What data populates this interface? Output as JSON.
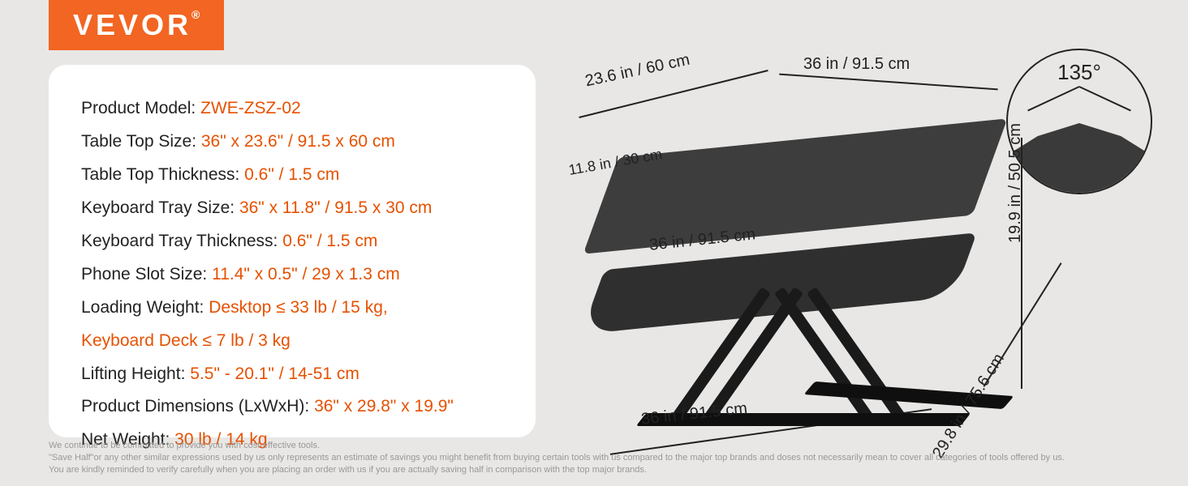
{
  "brand": "VEVOR",
  "colors": {
    "accent": "#f26522",
    "value": "#e65100",
    "text": "#222222",
    "card_bg": "#ffffff",
    "page_bg": "#e8e7e5",
    "product": "#3a3a3a",
    "footer": "#9a9895"
  },
  "specs": [
    {
      "label": "Product Model: ",
      "value": "ZWE-ZSZ-02"
    },
    {
      "label": "Table Top Size: ",
      "value": "36\" x 23.6\" / 91.5 x 60 cm"
    },
    {
      "label": "Table Top Thickness: ",
      "value": "0.6\" / 1.5 cm"
    },
    {
      "label": "Keyboard Tray Size: ",
      "value": "36\" x 11.8\" / 91.5 x 30 cm"
    },
    {
      "label": "Keyboard Tray Thickness: ",
      "value": "0.6\" / 1.5 cm"
    },
    {
      "label": "Phone Slot Size: ",
      "value": "11.4\" x 0.5\" / 29 x 1.3 cm"
    },
    {
      "label": "Loading Weight: ",
      "value": "Desktop ≤ 33 lb / 15 kg,"
    }
  ],
  "specs_extra": "Keyboard Deck ≤ 7 lb / 3 kg",
  "specs_tail": [
    {
      "label": "Lifting Height: ",
      "value": "5.5\" - 20.1\" / 14-51 cm"
    },
    {
      "label": "Product Dimensions (LxWxH): ",
      "value": "36\" x 29.8\" x 19.9\""
    },
    {
      "label": "Net Weight: ",
      "value": "30 lb / 14 kg"
    }
  ],
  "angle": {
    "label": "135°"
  },
  "dimensions": {
    "top_depth": "23.6 in / 60 cm",
    "top_width": "36 in  / 91.5 cm",
    "tray_depth": "11.8 in / 30 cm",
    "tray_width": "36 in / 91.5 cm",
    "base_width": "36 in / 91.5 cm",
    "base_depth": "29.8 in / 75.6 cm",
    "height": "19.9 in / 50.5 cm"
  },
  "footer": [
    "We continue to be committed to provide you with cost-effective tools.",
    "\"Save Half\"or any other similar expressions used by us only represents an estimate of savings you might benefit from buying certain tools with us compared to the major top brands and doses not necessarily mean to cover all categories of tools offered by us.",
    "You are kindly reminded to verify carefully when you are placing an order with us if you are actually saving half in comparison with the top major brands."
  ]
}
